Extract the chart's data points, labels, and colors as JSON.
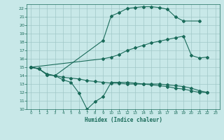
{
  "bg_color": "#c8e8e8",
  "line_color": "#1a6b5a",
  "grid_color": "#a0c8c8",
  "xlabel": "Humidex (Indice chaleur)",
  "xlim": [
    -0.5,
    23.5
  ],
  "ylim": [
    10,
    22.5
  ],
  "xticks": [
    0,
    1,
    2,
    3,
    4,
    5,
    6,
    7,
    8,
    9,
    10,
    11,
    12,
    13,
    14,
    15,
    16,
    17,
    18,
    19,
    20,
    21,
    22,
    23
  ],
  "yticks": [
    10,
    11,
    12,
    13,
    14,
    15,
    16,
    17,
    18,
    19,
    20,
    21,
    22
  ],
  "line1_x": [
    0,
    1,
    2,
    3,
    9,
    10,
    11,
    12,
    13,
    14,
    15,
    16,
    17,
    18,
    19,
    21
  ],
  "line1_y": [
    15,
    14.8,
    14.1,
    14.0,
    18.2,
    21.1,
    21.5,
    22.0,
    22.1,
    22.2,
    22.2,
    22.1,
    21.9,
    21.0,
    20.5,
    20.5
  ],
  "line2_x": [
    0,
    9,
    10,
    11,
    12,
    13,
    14,
    15,
    16,
    17,
    18,
    19,
    20,
    21,
    22
  ],
  "line2_y": [
    15,
    16.0,
    16.2,
    16.5,
    17.0,
    17.3,
    17.6,
    17.9,
    18.1,
    18.3,
    18.5,
    18.7,
    16.4,
    16.1,
    16.2
  ],
  "line3_x": [
    0,
    1,
    2,
    3,
    4,
    5,
    6,
    7,
    8,
    9,
    10,
    11,
    12,
    13,
    14,
    15,
    16,
    17,
    18,
    19,
    20,
    21,
    22
  ],
  "line3_y": [
    15,
    14.8,
    14.1,
    14.0,
    13.5,
    13.2,
    11.9,
    10.0,
    10.9,
    11.5,
    13.2,
    13.2,
    13.2,
    13.1,
    13.0,
    12.9,
    12.8,
    12.7,
    12.5,
    12.4,
    12.2,
    12.0,
    12.0
  ],
  "line4_x": [
    0,
    1,
    2,
    3,
    4,
    5,
    6,
    7,
    8,
    9,
    10,
    11,
    12,
    13,
    14,
    15,
    16,
    17,
    18,
    19,
    20,
    21,
    22
  ],
  "line4_y": [
    15,
    14.8,
    14.2,
    14.0,
    13.8,
    13.7,
    13.6,
    13.4,
    13.3,
    13.2,
    13.1,
    13.1,
    13.0,
    13.0,
    13.0,
    13.0,
    13.0,
    12.9,
    12.8,
    12.7,
    12.5,
    12.2,
    12.0
  ],
  "markersize": 2.0,
  "linewidth": 0.8
}
